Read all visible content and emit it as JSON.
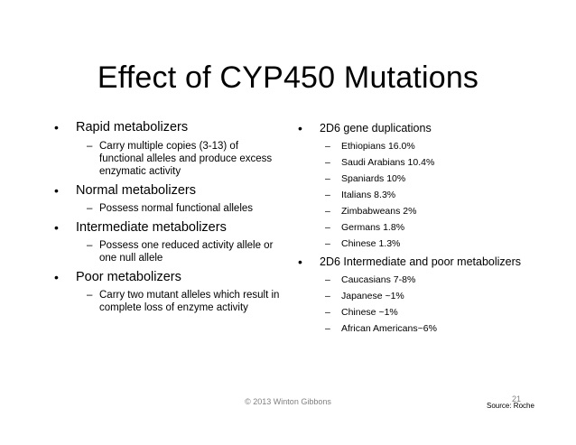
{
  "title": "Effect of CYP450 Mutations",
  "left_column": [
    {
      "label": "Rapid metabolizers",
      "subitems": [
        "Carry multiple copies (3-13) of functional alleles and produce excess enzymatic activity"
      ]
    },
    {
      "label": "Normal metabolizers",
      "subitems": [
        "Possess normal functional alleles"
      ]
    },
    {
      "label": "Intermediate metabolizers",
      "subitems": [
        "Possess one reduced activity allele or one null allele"
      ]
    },
    {
      "label": "Poor metabolizers",
      "subitems": [
        "Carry two mutant alleles which result in complete loss of enzyme activity"
      ]
    }
  ],
  "right_column": [
    {
      "label": "2D6 gene duplications",
      "subitems": [
        "Ethiopians 16.0%",
        "Saudi Arabians 10.4%",
        "Spaniards 10%",
        "Italians 8.3%",
        "Zimbabweans 2%",
        "Germans 1.8%",
        "Chinese 1.3%"
      ]
    },
    {
      "label": "2D6 Intermediate and poor metabolizers",
      "subitems": [
        "Caucasians 7-8%",
        "Japanese ~1%",
        "Chinese ~1%",
        "African Americans~6%"
      ]
    }
  ],
  "footer": "© 2013 Winton Gibbons",
  "page_number": "21",
  "source": "Source: Roche"
}
